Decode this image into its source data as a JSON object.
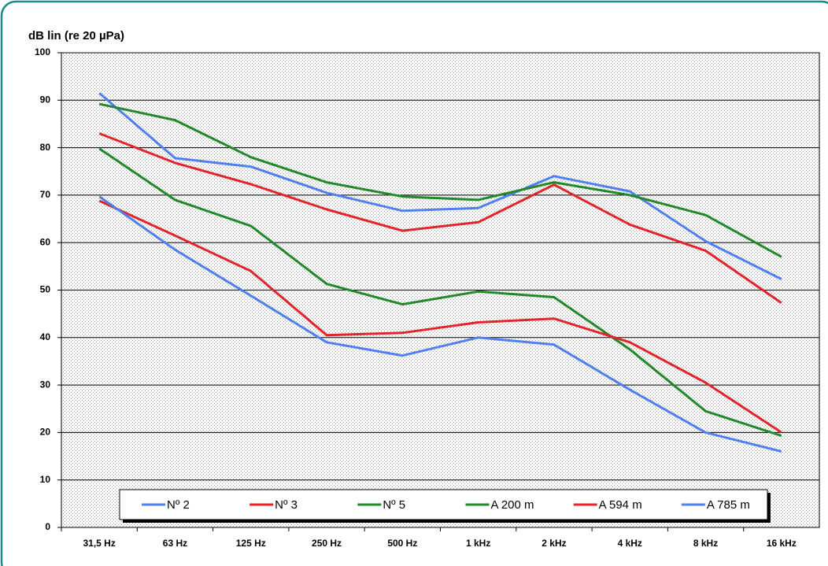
{
  "chart_data": {
    "type": "line",
    "y_axis_title": "dB lin (re 20 µPa)",
    "categories": [
      "31,5 Hz",
      "63 Hz",
      "125 Hz",
      "250 Hz",
      "500 Hz",
      "1 kHz",
      "2 kHz",
      "4 kHz",
      "8 kHz",
      "16 kHz"
    ],
    "series": [
      {
        "name": "Nº 2",
        "color": "#4f7ff0",
        "values": [
          91.5,
          77.8,
          76,
          70.5,
          66.7,
          67.3,
          74,
          70.8,
          60.3,
          52.3
        ]
      },
      {
        "name": "Nº 3",
        "color": "#e3242b",
        "values": [
          83,
          76.8,
          72.3,
          67,
          62.5,
          64.3,
          72.2,
          63.8,
          58.3,
          47.3
        ]
      },
      {
        "name": "Nº 5",
        "color": "#22892a",
        "values": [
          89.2,
          85.8,
          78,
          72.7,
          69.7,
          69,
          72.7,
          70,
          65.8,
          57
        ]
      },
      {
        "name": "A 200 m",
        "color": "#22892a",
        "values": [
          79.8,
          69,
          63.5,
          51.3,
          47,
          49.7,
          48.5,
          37.5,
          24.5,
          19.3
        ]
      },
      {
        "name": "A 594 m",
        "color": "#e3242b",
        "values": [
          68.8,
          61.5,
          54,
          40.5,
          41,
          43.2,
          44,
          39,
          30.5,
          20
        ]
      },
      {
        "name": "A 785 m",
        "color": "#4f7ff0",
        "values": [
          69.7,
          58.5,
          48.8,
          39,
          36.2,
          40,
          38.5,
          29,
          20,
          16
        ]
      }
    ],
    "ylim": [
      0,
      100
    ],
    "yticks": [
      0,
      10,
      20,
      30,
      40,
      50,
      60,
      70,
      80,
      90,
      100
    ],
    "grid": true,
    "legend": "bottom"
  }
}
